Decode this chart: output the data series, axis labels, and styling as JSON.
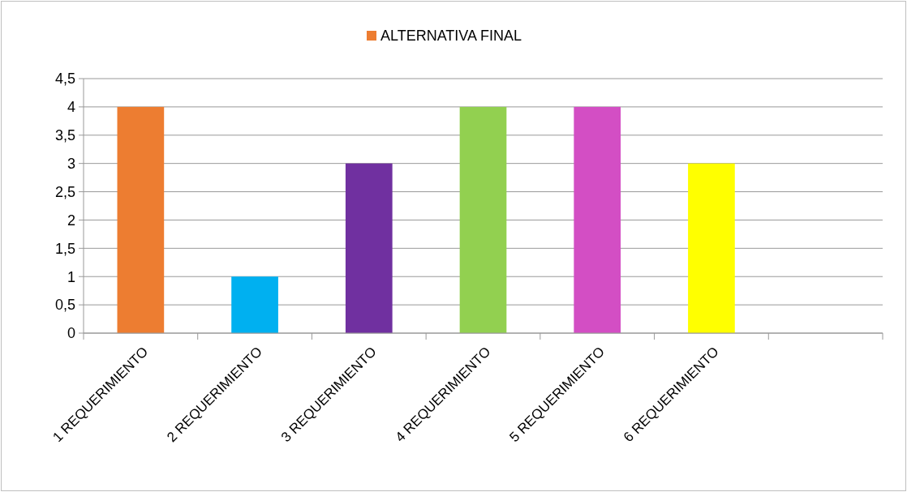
{
  "chart_data": {
    "type": "bar",
    "categories": [
      "1 REQUERIMIENTO",
      "2 REQUERIMIENTO",
      "3 REQUERIMIENTO",
      "4 REQUERIMIENTO",
      "5 REQUERIMIENTO",
      "6 REQUERIMIENTO",
      null
    ],
    "series": [
      {
        "name": "ALTERNATIVA FINAL",
        "color": "#ed7d31",
        "values": [
          4,
          1,
          3,
          4,
          4,
          3,
          null
        ],
        "colors": [
          "#ed7d31",
          "#00b0f0",
          "#7030a0",
          "#92d050",
          "#d34ec4",
          "#ffff00",
          null
        ]
      }
    ],
    "ylim": [
      0,
      4.5
    ],
    "yticks": [
      0,
      {
        "value": 0.5,
        "label": "0,5"
      },
      1,
      {
        "value": 1.5,
        "label": "1,5"
      },
      2,
      {
        "value": 2.5,
        "label": "2,5"
      },
      3,
      {
        "value": 3.5,
        "label": "3,5"
      },
      4,
      {
        "value": 4.5,
        "label": "4,5"
      }
    ],
    "grid": "y",
    "legend": "top"
  }
}
